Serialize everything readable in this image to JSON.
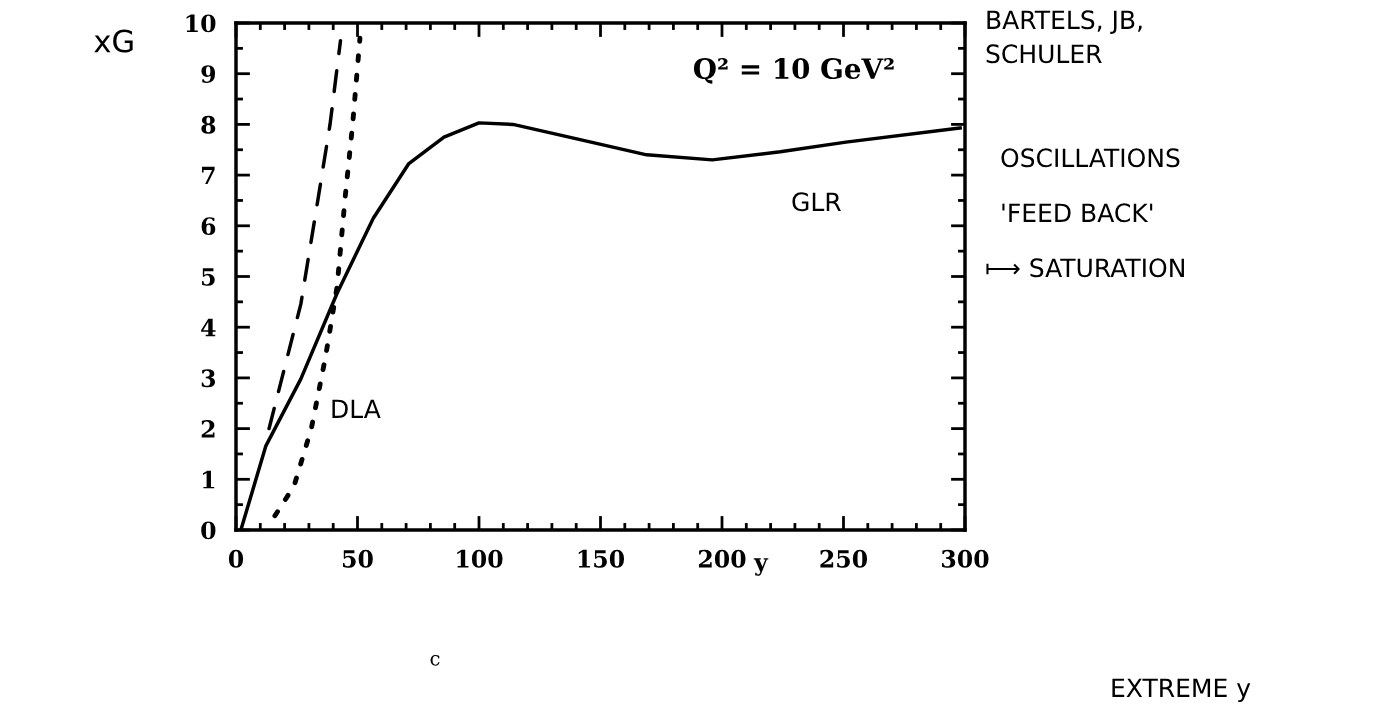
{
  "chart_data": {
    "type": "line",
    "ylabel": "xG",
    "xlabel": "y",
    "xlim": [
      0,
      300
    ],
    "xticks": [
      0,
      50,
      100,
      150,
      200,
      250,
      300
    ],
    "ylim": [
      0,
      10
    ],
    "yticks": [
      0,
      1,
      2,
      3,
      4,
      5,
      6,
      7,
      8,
      9,
      10
    ],
    "grid": false,
    "legend": false,
    "series": [
      {
        "color": "#000000",
        "line_style": "solid",
        "x": [
          2,
          12.3,
          26.7,
          41.6,
          56.5,
          71,
          85.6,
          100,
          114,
          141.6,
          169,
          196,
          224,
          251,
          298
        ],
        "values": [
          0,
          1.66,
          2.98,
          4.67,
          6.15,
          7.22,
          7.75,
          8.03,
          8.0,
          7.7,
          7.4,
          7.3,
          7.46,
          7.65,
          7.93
        ]
      },
      {
        "color": "#000000",
        "line_style": "dashed",
        "x": [
          13.6,
          26.7,
          34,
          38.7,
          43
        ],
        "values": [
          2.0,
          4.46,
          6.6,
          8.0,
          9.65
        ]
      },
      {
        "color": "#000000",
        "line_style": "dotted",
        "x": [
          16,
          23.9,
          31,
          36.8,
          41.6,
          45,
          48,
          51
        ],
        "values": [
          0.28,
          0.87,
          2.0,
          3.4,
          4.8,
          6.6,
          8.0,
          9.7
        ]
      }
    ],
    "annotations": [
      "Q² = 10 GeV²",
      "GLR",
      "DLA",
      "c",
      "BARTELS, JB,",
      "SCHULER",
      "OSCILLATIONS",
      "'FEED BACK'",
      "⟼ SATURATION",
      "EXTREME y"
    ]
  }
}
